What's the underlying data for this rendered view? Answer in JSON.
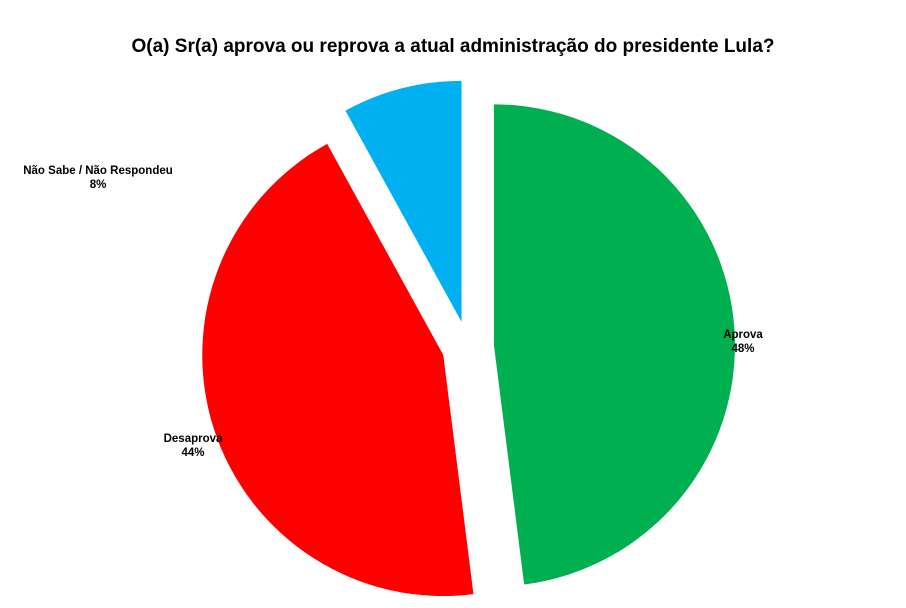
{
  "chart_data": {
    "type": "pie",
    "title": "O(a) Sr(a) aprova ou reprova a atual administração do presidente Lula?",
    "slices": [
      {
        "label": "Aprova",
        "value": 48,
        "value_label": "48%",
        "color": "#00b050",
        "exploded": true
      },
      {
        "label": "Desaprova",
        "value": 44,
        "value_label": "44%",
        "color": "#ff0000",
        "exploded": true
      },
      {
        "label": "Não Sabe / Não Respondeu",
        "value": 8,
        "value_label": "8%",
        "color": "#00b0f0",
        "exploded": true
      }
    ]
  }
}
